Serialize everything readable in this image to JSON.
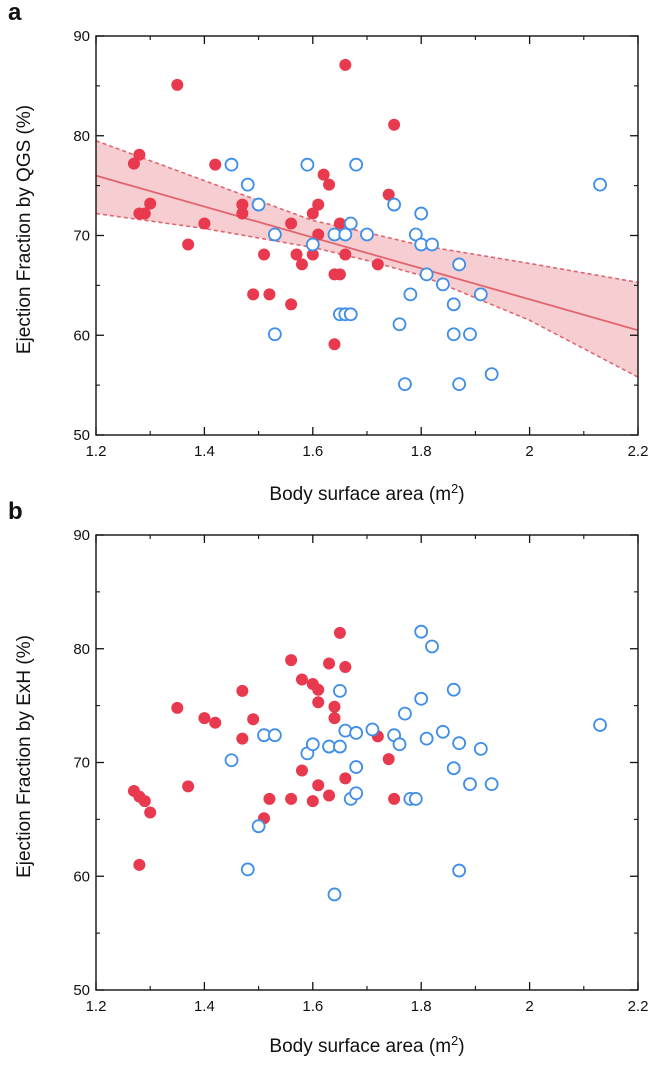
{
  "chart_data": [
    {
      "panel_label": "a",
      "type": "scatter",
      "xlabel": "Body surface area (m",
      "xlabel_sup": "2",
      "xlabel_tail": ")",
      "ylabel": "Ejection Fraction by QGS (%)",
      "xlim": [
        1.2,
        2.2
      ],
      "ylim": [
        50,
        90
      ],
      "xticks": [
        "1.2",
        "1.4",
        "1.6",
        "1.8",
        "2",
        "2.2"
      ],
      "yticks": [
        "50",
        "60",
        "70",
        "80",
        "90"
      ],
      "grid": false,
      "colors": {
        "filled": "#e8394f",
        "open": "#3f8ee8",
        "fit": "#e06570",
        "band": "#f6cdd1"
      },
      "regression": {
        "x": [
          1.2,
          2.2
        ],
        "y": [
          76.0,
          60.5
        ]
      },
      "ci_upper": {
        "x": [
          1.2,
          1.4,
          1.6,
          1.7,
          1.8,
          2.0,
          2.2
        ],
        "y": [
          79.5,
          75.5,
          71.5,
          70.3,
          69.0,
          67.2,
          65.3
        ]
      },
      "ci_lower": {
        "x": [
          1.2,
          1.4,
          1.6,
          1.7,
          1.8,
          2.0,
          2.2
        ],
        "y": [
          72.2,
          70.7,
          68.8,
          67.5,
          66.0,
          61.5,
          55.8
        ]
      },
      "series": [
        {
          "style": "filled",
          "points": [
            [
              1.27,
              77.2
            ],
            [
              1.28,
              78.1
            ],
            [
              1.28,
              72.2
            ],
            [
              1.29,
              72.2
            ],
            [
              1.3,
              73.2
            ],
            [
              1.35,
              85.1
            ],
            [
              1.37,
              69.1
            ],
            [
              1.4,
              71.2
            ],
            [
              1.42,
              77.1
            ],
            [
              1.47,
              73.1
            ],
            [
              1.47,
              72.2
            ],
            [
              1.49,
              64.1
            ],
            [
              1.51,
              68.1
            ],
            [
              1.52,
              64.1
            ],
            [
              1.56,
              63.1
            ],
            [
              1.56,
              71.2
            ],
            [
              1.57,
              68.1
            ],
            [
              1.58,
              67.1
            ],
            [
              1.6,
              72.2
            ],
            [
              1.6,
              68.1
            ],
            [
              1.61,
              70.1
            ],
            [
              1.61,
              73.1
            ],
            [
              1.62,
              76.1
            ],
            [
              1.63,
              75.1
            ],
            [
              1.64,
              66.1
            ],
            [
              1.65,
              71.2
            ],
            [
              1.65,
              66.1
            ],
            [
              1.64,
              59.1
            ],
            [
              1.66,
              87.1
            ],
            [
              1.66,
              68.1
            ],
            [
              1.72,
              67.1
            ],
            [
              1.74,
              74.1
            ],
            [
              1.75,
              81.1
            ]
          ]
        },
        {
          "style": "open",
          "points": [
            [
              1.45,
              77.1
            ],
            [
              1.48,
              75.1
            ],
            [
              1.5,
              73.1
            ],
            [
              1.53,
              70.1
            ],
            [
              1.53,
              60.1
            ],
            [
              1.59,
              77.1
            ],
            [
              1.6,
              69.1
            ],
            [
              1.64,
              70.1
            ],
            [
              1.65,
              62.1
            ],
            [
              1.66,
              62.1
            ],
            [
              1.66,
              70.1
            ],
            [
              1.67,
              71.2
            ],
            [
              1.67,
              62.1
            ],
            [
              1.68,
              77.1
            ],
            [
              1.7,
              70.1
            ],
            [
              1.75,
              73.1
            ],
            [
              1.76,
              61.1
            ],
            [
              1.77,
              55.1
            ],
            [
              1.78,
              64.1
            ],
            [
              1.79,
              70.1
            ],
            [
              1.8,
              72.2
            ],
            [
              1.8,
              69.1
            ],
            [
              1.81,
              66.1
            ],
            [
              1.82,
              69.1
            ],
            [
              1.84,
              65.1
            ],
            [
              1.86,
              60.1
            ],
            [
              1.86,
              63.1
            ],
            [
              1.87,
              67.1
            ],
            [
              1.87,
              55.1
            ],
            [
              1.89,
              60.1
            ],
            [
              1.91,
              64.1
            ],
            [
              1.93,
              56.1
            ],
            [
              2.13,
              75.1
            ]
          ]
        }
      ]
    },
    {
      "panel_label": "b",
      "type": "scatter",
      "xlabel": "Body surface area (m",
      "xlabel_sup": "2",
      "xlabel_tail": ")",
      "ylabel": "Ejection Fraction by ExH (%)",
      "xlim": [
        1.2,
        2.2
      ],
      "ylim": [
        50,
        90
      ],
      "xticks": [
        "1.2",
        "1.4",
        "1.6",
        "1.8",
        "2",
        "2.2"
      ],
      "yticks": [
        "50",
        "60",
        "70",
        "80",
        "90"
      ],
      "grid": false,
      "colors": {
        "filled": "#e8394f",
        "open": "#3f8ee8"
      },
      "series": [
        {
          "style": "filled",
          "points": [
            [
              1.27,
              67.5
            ],
            [
              1.28,
              67.0
            ],
            [
              1.29,
              66.6
            ],
            [
              1.28,
              61.0
            ],
            [
              1.3,
              65.6
            ],
            [
              1.35,
              74.8
            ],
            [
              1.37,
              67.9
            ],
            [
              1.4,
              73.9
            ],
            [
              1.42,
              73.5
            ],
            [
              1.47,
              76.3
            ],
            [
              1.47,
              72.1
            ],
            [
              1.49,
              73.8
            ],
            [
              1.51,
              65.1
            ],
            [
              1.52,
              66.8
            ],
            [
              1.56,
              79.0
            ],
            [
              1.56,
              66.8
            ],
            [
              1.58,
              77.3
            ],
            [
              1.58,
              69.3
            ],
            [
              1.6,
              76.9
            ],
            [
              1.6,
              66.6
            ],
            [
              1.61,
              75.3
            ],
            [
              1.61,
              68.0
            ],
            [
              1.61,
              76.4
            ],
            [
              1.63,
              78.7
            ],
            [
              1.64,
              74.9
            ],
            [
              1.64,
              73.9
            ],
            [
              1.63,
              67.1
            ],
            [
              1.65,
              81.4
            ],
            [
              1.66,
              78.4
            ],
            [
              1.66,
              68.6
            ],
            [
              1.72,
              72.3
            ],
            [
              1.74,
              70.3
            ],
            [
              1.75,
              66.8
            ]
          ]
        },
        {
          "style": "open",
          "points": [
            [
              1.45,
              70.2
            ],
            [
              1.48,
              60.6
            ],
            [
              1.5,
              64.4
            ],
            [
              1.51,
              72.4
            ],
            [
              1.53,
              72.4
            ],
            [
              1.59,
              70.8
            ],
            [
              1.6,
              71.6
            ],
            [
              1.63,
              71.4
            ],
            [
              1.64,
              58.4
            ],
            [
              1.65,
              71.4
            ],
            [
              1.65,
              76.3
            ],
            [
              1.66,
              72.8
            ],
            [
              1.67,
              66.8
            ],
            [
              1.68,
              72.6
            ],
            [
              1.68,
              67.3
            ],
            [
              1.68,
              69.6
            ],
            [
              1.71,
              72.9
            ],
            [
              1.75,
              72.4
            ],
            [
              1.76,
              71.6
            ],
            [
              1.77,
              74.3
            ],
            [
              1.78,
              66.8
            ],
            [
              1.79,
              66.8
            ],
            [
              1.8,
              75.6
            ],
            [
              1.8,
              81.5
            ],
            [
              1.81,
              72.1
            ],
            [
              1.82,
              80.2
            ],
            [
              1.84,
              72.7
            ],
            [
              1.86,
              76.4
            ],
            [
              1.86,
              69.5
            ],
            [
              1.87,
              60.5
            ],
            [
              1.87,
              71.7
            ],
            [
              1.89,
              68.1
            ],
            [
              1.91,
              71.2
            ],
            [
              1.93,
              68.1
            ],
            [
              2.13,
              73.3
            ]
          ]
        }
      ]
    }
  ]
}
